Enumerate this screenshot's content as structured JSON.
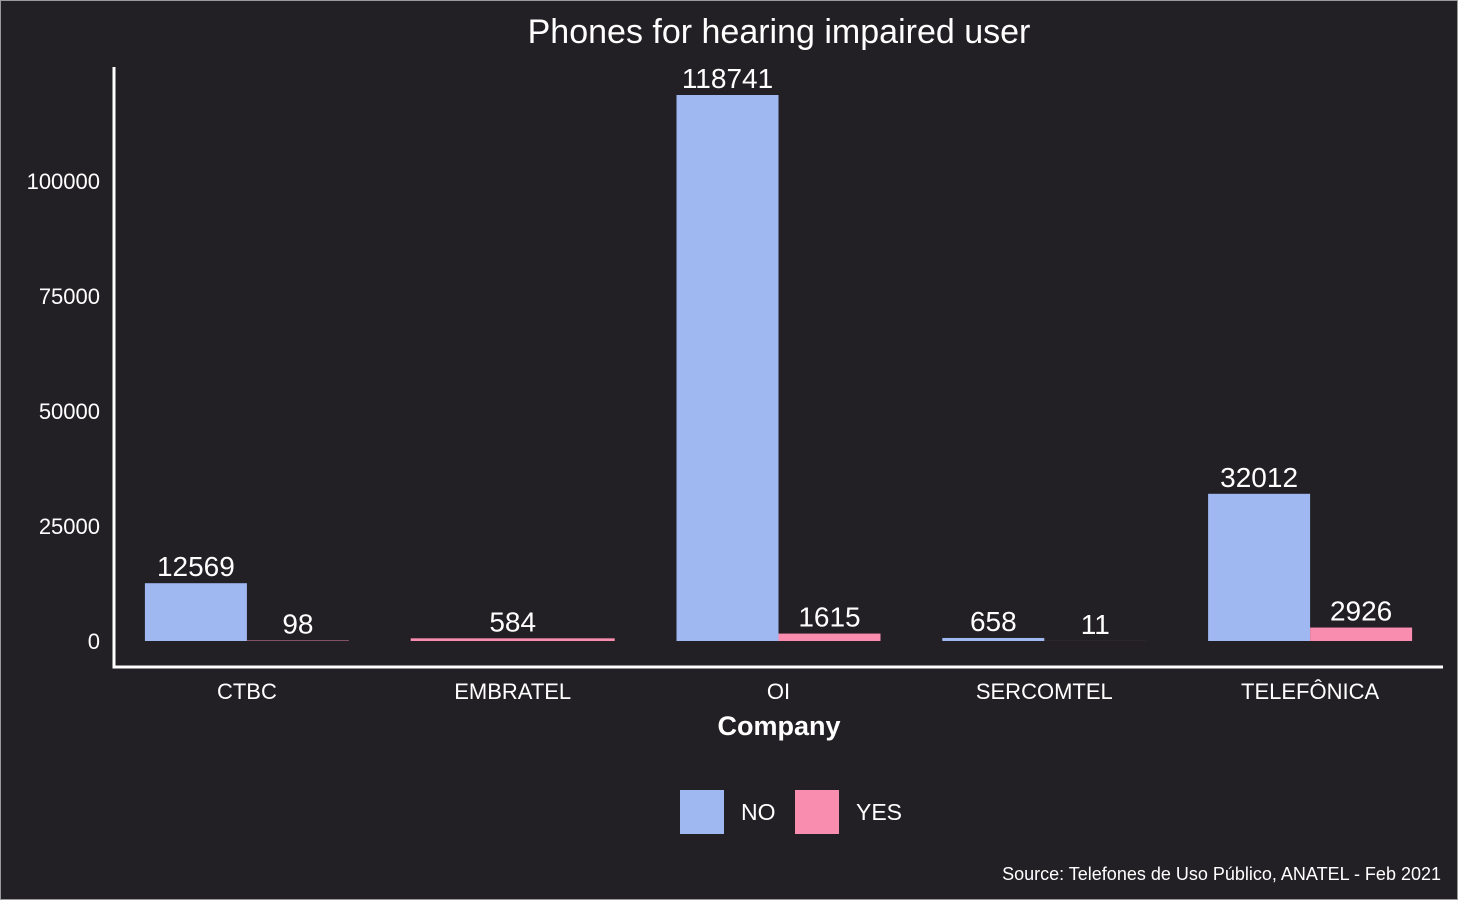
{
  "chart_data": {
    "type": "bar",
    "title": "Phones for hearing impaired user",
    "xlabel": "Company",
    "ylabel": "",
    "categories": [
      "CTBC",
      "EMBRATEL",
      "OI",
      "SERCOMTEL",
      "TELEFÔNICA"
    ],
    "series": [
      {
        "name": "NO",
        "color": "#a0b8f2",
        "values": [
          12569,
          0,
          118741,
          658,
          32012
        ]
      },
      {
        "name": "YES",
        "color": "#f88db0",
        "values": [
          98,
          584,
          1615,
          11,
          2926
        ]
      }
    ],
    "data_labels": [
      [
        "12569",
        null,
        "118741",
        "658",
        "32012"
      ],
      [
        "98",
        "584",
        "1615",
        "11",
        "2926"
      ]
    ],
    "y_ticks": [
      0,
      25000,
      50000,
      75000,
      100000
    ],
    "y_tick_labels": [
      "0",
      "25000",
      "50000",
      "75000",
      "100000"
    ],
    "ylim": [
      0,
      118741
    ],
    "grid": false,
    "legend_position": "bottom",
    "caption": "Source: Telefones de Uso Público, ANATEL - Feb 2021"
  }
}
